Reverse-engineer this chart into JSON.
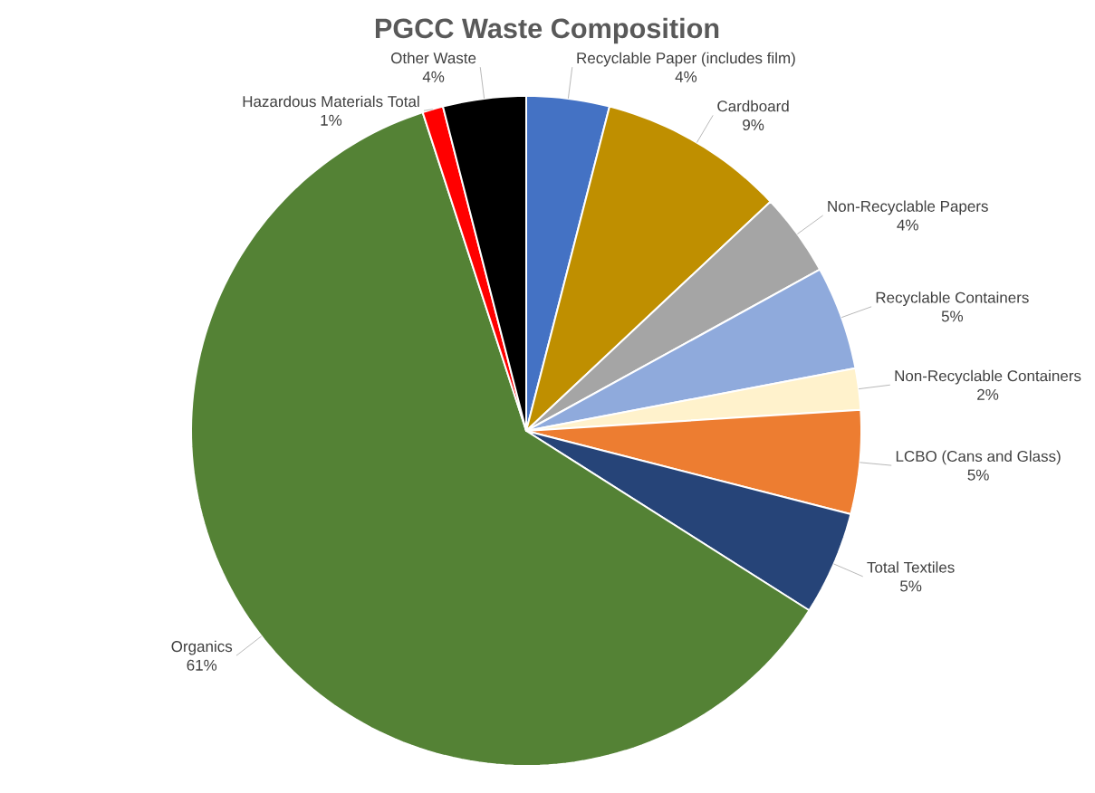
{
  "chart_data": {
    "type": "pie",
    "title": "PGCC Waste Composition",
    "categories": [
      "Recyclable Paper (includes film)",
      "Cardboard",
      "Non-Recyclable Papers",
      "Recyclable Containers",
      "Non-Recyclable Containers",
      "LCBO (Cans and Glass)",
      "Total Textiles",
      "Organics",
      "Hazardous Materials Total",
      "Other Waste"
    ],
    "values": [
      4,
      9,
      4,
      5,
      2,
      5,
      5,
      61,
      1,
      4
    ],
    "value_labels": [
      "4%",
      "9%",
      "4%",
      "5%",
      "2%",
      "5%",
      "5%",
      "61%",
      "1%",
      "4%"
    ],
    "colors": [
      "#4472c4",
      "#bf8f00",
      "#a5a5a5",
      "#8faadc",
      "#fff2cc",
      "#ed7d31",
      "#264478",
      "#548235",
      "#ff0000",
      "#000000"
    ]
  }
}
